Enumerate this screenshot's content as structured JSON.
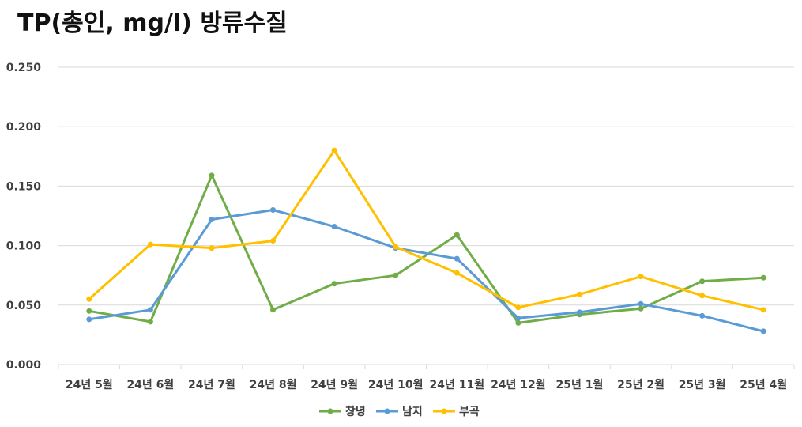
{
  "chart_data": {
    "type": "line",
    "title": "TP(총인, mg/l) 방류수질",
    "xlabel": "",
    "ylabel": "",
    "ylim": [
      0,
      0.25
    ],
    "yticks": [
      "0.000",
      "0.050",
      "0.100",
      "0.150",
      "0.200",
      "0.250"
    ],
    "ytick_values": [
      0,
      0.05,
      0.1,
      0.15,
      0.2,
      0.25
    ],
    "grid": true,
    "legend_position": "bottom",
    "categories": [
      "24년 5월",
      "24년 6월",
      "24년 7월",
      "24년 8월",
      "24년 9월",
      "24년 10월",
      "24년 11월",
      "24년 12월",
      "25년 1월",
      "25년 2월",
      "25년 3월",
      "25년 4월"
    ],
    "series": [
      {
        "name": "창녕",
        "color": "#70AD47",
        "values": [
          0.045,
          0.036,
          0.159,
          0.046,
          0.068,
          0.075,
          0.109,
          0.035,
          0.042,
          0.047,
          0.07,
          0.073
        ]
      },
      {
        "name": "남지",
        "color": "#5B9BD5",
        "values": [
          0.038,
          0.046,
          0.122,
          0.13,
          0.116,
          0.098,
          0.089,
          0.039,
          0.044,
          0.051,
          0.041,
          0.028
        ]
      },
      {
        "name": "부곡",
        "color": "#FFC000",
        "values": [
          0.055,
          0.101,
          0.098,
          0.104,
          0.18,
          0.099,
          0.077,
          0.048,
          0.059,
          0.074,
          0.058,
          0.046
        ]
      }
    ]
  }
}
